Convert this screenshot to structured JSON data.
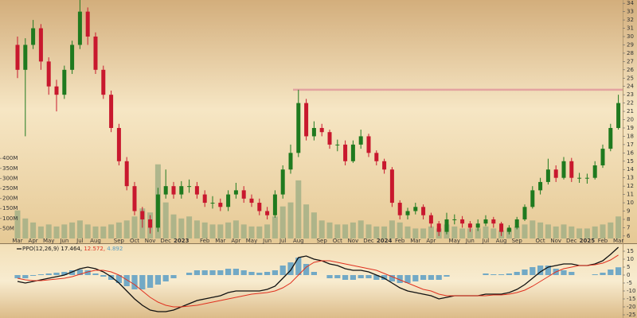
{
  "chart_data": [
    {
      "type": "candlestick",
      "categories": [
        "Mar",
        null,
        "Apr",
        null,
        "May",
        null,
        "Jun",
        null,
        "Jul",
        null,
        "Aug",
        null,
        null,
        "Sep",
        null,
        "Oct",
        null,
        "Nov",
        null,
        "Dec",
        null,
        "2023",
        null,
        null,
        "Feb",
        null,
        "Mar",
        null,
        "Apr",
        null,
        "May",
        null,
        "Jun",
        null,
        "Jul",
        null,
        "Aug",
        null,
        null,
        "Sep",
        null,
        "Oct",
        null,
        "Nov",
        null,
        "Dec",
        null,
        "2024",
        null,
        "Feb",
        null,
        "Mar",
        null,
        "Apr",
        null,
        null,
        "May",
        null,
        "Jun",
        null,
        "Jul",
        null,
        "Aug",
        null,
        "Sep",
        null,
        null,
        "Oct",
        null,
        "Nov",
        null,
        "Dec",
        null,
        "2025",
        null,
        "Feb",
        null,
        "Mar"
      ],
      "open": [
        29,
        26,
        29,
        31,
        27,
        24,
        23,
        26,
        29,
        33,
        30,
        26,
        23,
        19,
        15,
        12,
        9,
        8,
        7,
        11,
        12,
        11,
        12,
        12,
        11,
        10,
        10,
        9.5,
        11,
        11.5,
        10.5,
        10,
        9,
        8.5,
        11,
        14,
        16,
        22,
        18,
        19,
        18.5,
        17,
        17,
        15,
        17,
        18,
        16,
        15,
        14,
        10,
        8.5,
        9,
        9.5,
        8.5,
        7.5,
        6.5,
        8,
        8,
        7.5,
        7,
        7.5,
        8,
        7.5,
        6.5,
        7,
        8,
        9.5,
        11.5,
        12.5,
        14,
        13,
        15,
        13,
        13,
        13,
        14.5,
        16.5,
        19
      ],
      "high": [
        30,
        29.8,
        32,
        31.5,
        27.5,
        24.8,
        26.5,
        29.5,
        35,
        33.5,
        30.5,
        26.5,
        23.5,
        19.5,
        15.5,
        12.5,
        9.5,
        8.5,
        11.8,
        14,
        12.5,
        12.6,
        12.8,
        12.5,
        11.5,
        10.8,
        10.5,
        11.5,
        12.4,
        12,
        11,
        10.5,
        9.5,
        11.5,
        14.5,
        17,
        23.6,
        22.5,
        19.8,
        19.5,
        18.8,
        17.6,
        17.5,
        17.5,
        18.8,
        18.3,
        16.3,
        15.3,
        14.3,
        10.3,
        9.4,
        10,
        9.8,
        8.8,
        7.8,
        8.8,
        8.6,
        8.4,
        7.8,
        8,
        8.5,
        8.3,
        7.7,
        7.3,
        8.3,
        9.8,
        12,
        13,
        15.3,
        14.5,
        15.5,
        15.4,
        13.6,
        13.5,
        15,
        17,
        19.5,
        23
      ],
      "low": [
        25,
        18,
        28.5,
        26,
        23,
        21,
        22.5,
        25.5,
        28.5,
        29,
        25.5,
        22.5,
        18.5,
        14.5,
        11.5,
        8.5,
        7,
        6.3,
        6.5,
        10.5,
        10.5,
        10.5,
        11.2,
        10.5,
        9.5,
        9.3,
        9,
        9,
        10.5,
        10,
        9.5,
        8.5,
        8,
        8.2,
        10.5,
        13.5,
        15.5,
        17.5,
        17.5,
        18,
        16.5,
        16.2,
        14.5,
        14.8,
        16.5,
        15.5,
        14.5,
        13.5,
        9.5,
        8,
        8,
        8.6,
        8,
        7,
        6,
        6.2,
        7.4,
        7,
        6.5,
        6.6,
        7.2,
        7,
        6,
        6.2,
        6.8,
        7.8,
        9.3,
        11,
        12.2,
        12.5,
        12.8,
        12.5,
        12.4,
        12.3,
        12.8,
        14.2,
        16.2,
        18.8
      ],
      "close": [
        26,
        29,
        31,
        27,
        24,
        23,
        26,
        29,
        33,
        30,
        26,
        23,
        19,
        15,
        12,
        9,
        8,
        7,
        11,
        12,
        11,
        12,
        12,
        11,
        10,
        10,
        9.5,
        11,
        11.5,
        10.5,
        10,
        9,
        8.5,
        11,
        14,
        16,
        22,
        18,
        19,
        18.5,
        17,
        17,
        15,
        17,
        18,
        16,
        15,
        14,
        10,
        8.5,
        9,
        9.5,
        8.5,
        7.5,
        6.5,
        8,
        8,
        7.5,
        7,
        7.5,
        8,
        7.5,
        6.5,
        7,
        8,
        9.5,
        11.5,
        12.5,
        14,
        13,
        15,
        13,
        13,
        13,
        14.5,
        16.5,
        19,
        22
      ],
      "volume": [
        140000000,
        100000000,
        80000000,
        60000000,
        70000000,
        60000000,
        70000000,
        80000000,
        90000000,
        70000000,
        60000000,
        60000000,
        70000000,
        80000000,
        90000000,
        110000000,
        150000000,
        130000000,
        370000000,
        180000000,
        120000000,
        100000000,
        110000000,
        90000000,
        80000000,
        70000000,
        70000000,
        80000000,
        90000000,
        70000000,
        60000000,
        60000000,
        70000000,
        110000000,
        160000000,
        180000000,
        290000000,
        170000000,
        130000000,
        90000000,
        80000000,
        70000000,
        70000000,
        80000000,
        90000000,
        70000000,
        60000000,
        60000000,
        90000000,
        80000000,
        60000000,
        50000000,
        50000000,
        60000000,
        50000000,
        70000000,
        60000000,
        50000000,
        50000000,
        50000000,
        60000000,
        50000000,
        40000000,
        50000000,
        60000000,
        70000000,
        90000000,
        80000000,
        70000000,
        60000000,
        70000000,
        60000000,
        50000000,
        50000000,
        60000000,
        70000000,
        80000000,
        110000000
      ],
      "up_color": "#1f7a1f",
      "down_color": "#c8182e",
      "volume_color": "#9fae84",
      "hline": 23.6,
      "hline_color": "#e3a3a0",
      "ylim": [
        5.7,
        34.4
      ],
      "yticks": [
        6,
        7,
        8,
        9,
        10,
        11,
        12,
        13,
        14,
        15,
        16,
        17,
        18,
        19,
        20,
        21,
        22,
        23,
        24,
        25,
        26,
        27,
        28,
        29,
        30,
        31,
        32,
        33,
        34
      ],
      "y2lim": [
        0,
        1190000000
      ],
      "y2ticks": [
        {
          "value": 50000000,
          "label": "50M"
        },
        {
          "value": 100000000,
          "label": "100M"
        },
        {
          "value": 150000000,
          "label": "150M"
        },
        {
          "value": 200000000,
          "label": "200M"
        },
        {
          "value": 250000000,
          "label": "250M"
        },
        {
          "value": 300000000,
          "label": "300M"
        },
        {
          "value": 350000000,
          "label": "350M"
        },
        {
          "value": 400000000,
          "label": "400M"
        }
      ]
    },
    {
      "type": "line",
      "label": "PPO(12,26,9)",
      "legend_values": [
        "17.464,",
        "12.572,",
        "4.892"
      ],
      "series": [
        {
          "color": "#111111",
          "style": "line",
          "values": [
            -4,
            -5,
            -4,
            -3,
            -2,
            -1,
            0,
            2,
            4,
            5,
            4,
            2,
            -1,
            -5,
            -10,
            -15,
            -19,
            -22,
            -23,
            -23,
            -22,
            -20,
            -18,
            -16,
            -15,
            -14,
            -13,
            -11,
            -10,
            -10,
            -10,
            -10,
            -9,
            -7,
            -2,
            3,
            11,
            12,
            10,
            9,
            7,
            6,
            4,
            3,
            3,
            2,
            0,
            -2,
            -5,
            -8,
            -10,
            -11,
            -12,
            -13,
            -15,
            -14,
            -13,
            -13,
            -13,
            -13,
            -12,
            -12,
            -12,
            -11,
            -9,
            -6,
            -2,
            2,
            5,
            6,
            7,
            7,
            6,
            6,
            7,
            9,
            13,
            17.5
          ]
        },
        {
          "color": "#e0301e",
          "style": "line",
          "values": [
            -2,
            -3,
            -3.5,
            -3.5,
            -3,
            -2.5,
            -2,
            -1,
            0.5,
            2,
            3,
            3,
            2,
            0,
            -3,
            -6,
            -10,
            -14,
            -17,
            -19,
            -20,
            -20,
            -19.5,
            -19,
            -18,
            -17,
            -16,
            -15,
            -14,
            -13,
            -12,
            -11.5,
            -11,
            -10,
            -8,
            -5,
            0,
            5,
            8,
            9,
            9,
            8,
            7,
            6,
            5,
            4,
            3,
            1,
            -1,
            -3,
            -5,
            -7,
            -9,
            -10,
            -12,
            -13,
            -13,
            -13,
            -13,
            -13,
            -13,
            -12.5,
            -12.5,
            -12,
            -11,
            -9.5,
            -7,
            -4,
            -1,
            2,
            4,
            5,
            6,
            6,
            6.5,
            7.5,
            9.5,
            12.6
          ]
        },
        {
          "color": "#5a9ec4",
          "style": "bar",
          "values": [
            -2,
            -2,
            -0.5,
            0.5,
            1,
            1.5,
            2,
            3,
            3.5,
            3,
            1,
            -1,
            -3,
            -5,
            -7,
            -9,
            -9,
            -8,
            -6,
            -4,
            -2,
            0,
            1.5,
            3,
            3,
            3,
            3,
            4,
            4,
            3,
            2,
            1.5,
            2,
            3,
            6,
            8,
            11,
            7,
            2,
            0,
            -2,
            -2,
            -3,
            -3,
            -2,
            -2,
            -3,
            -3,
            -4,
            -5,
            -5,
            -4,
            -3,
            -3,
            -3,
            -1,
            0,
            0,
            0,
            0,
            1,
            0.5,
            0.5,
            1,
            2,
            3.5,
            5,
            6,
            6,
            4,
            3,
            2,
            0,
            0,
            0.5,
            1.5,
            3.5,
            4.9
          ]
        }
      ],
      "ylim": [
        -27,
        19.5
      ],
      "yticks": [
        15,
        10,
        5,
        0,
        -5,
        -10,
        -15,
        -20,
        -25
      ]
    }
  ]
}
